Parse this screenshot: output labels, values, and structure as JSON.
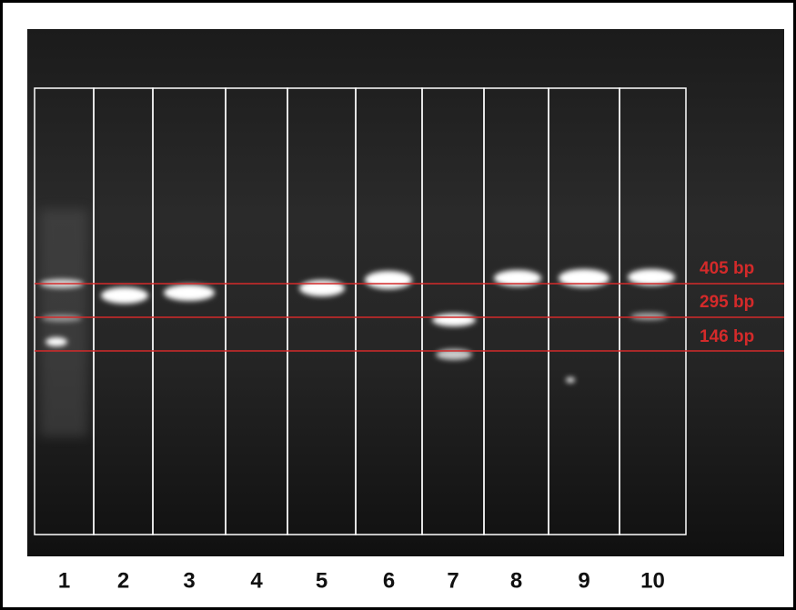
{
  "lanes": [
    "1",
    "2",
    "3",
    "4",
    "5",
    "6",
    "7",
    "8",
    "9",
    "10"
  ],
  "markers": [
    "405 bp",
    "295 bp",
    "146 bp"
  ]
}
